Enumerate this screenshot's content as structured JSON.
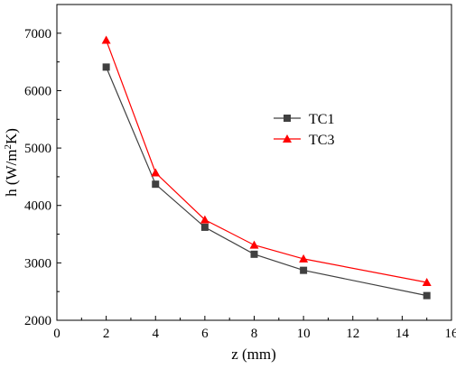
{
  "chart_data": {
    "type": "line",
    "title": "",
    "xlabel": "z (mm)",
    "ylabel": {
      "main": "h (W/m",
      "sup": "2",
      "tail": "K)"
    },
    "xlim": [
      0,
      16
    ],
    "ylim": [
      2000,
      7500
    ],
    "xticks": [
      0,
      2,
      4,
      6,
      8,
      10,
      12,
      14,
      16
    ],
    "yticks": [
      2000,
      3000,
      4000,
      5000,
      6000,
      7000
    ],
    "grid": false,
    "legend_position": "center-right",
    "series": [
      {
        "name": "TC1",
        "marker": "square",
        "color": "#404040",
        "x": [
          2,
          4,
          6,
          8,
          10,
          15
        ],
        "y": [
          6410,
          4370,
          3620,
          3150,
          2870,
          2430
        ]
      },
      {
        "name": "TC3",
        "marker": "triangle",
        "color": "#ff0000",
        "x": [
          2,
          4,
          6,
          8,
          10,
          15
        ],
        "y": [
          6880,
          4570,
          3750,
          3310,
          3070,
          2660
        ]
      }
    ]
  }
}
